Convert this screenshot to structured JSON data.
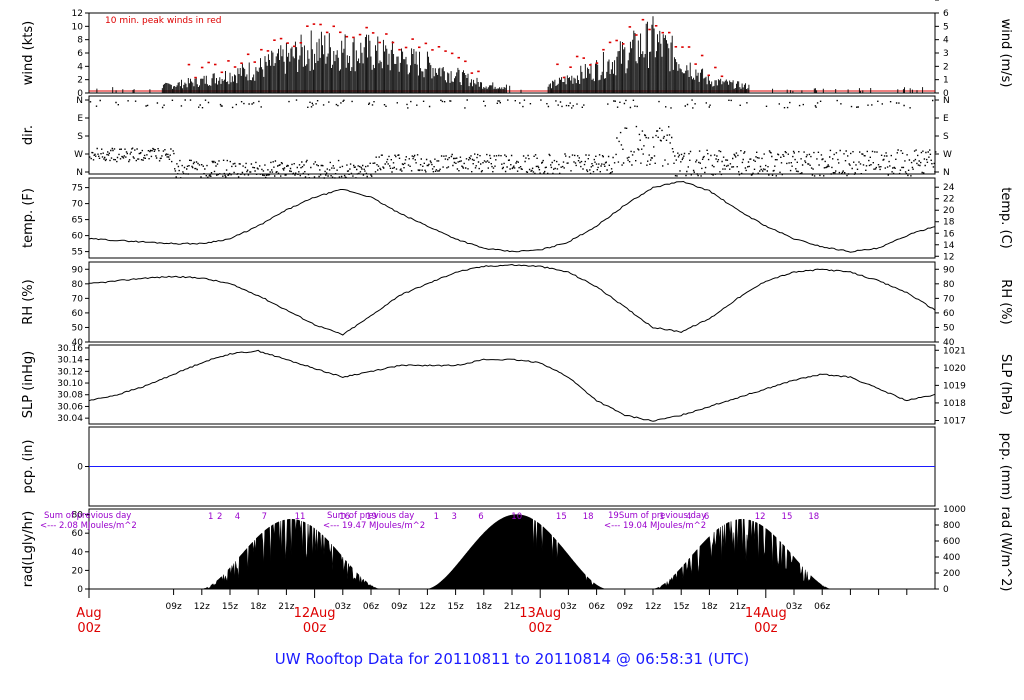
{
  "title": "UW Rooftop Data for 20110811  to  20110814 @ 06:58:31  (UTC)",
  "colors": {
    "accent": "#dd0000",
    "rule": "#1a1aff",
    "rad_note": "#9900cc",
    "line": "#000000"
  },
  "chart_data": [
    {
      "type": "bar",
      "name": "wind",
      "ylabel": "wind (kts)",
      "ylabel_right": "wind (m/s)",
      "ylim": [
        0,
        12
      ],
      "yticks": [
        "0",
        "2",
        "4",
        "6",
        "8",
        "10",
        "12"
      ],
      "ylim_right": [
        0,
        6
      ],
      "yticks_right": [
        "0",
        "1",
        "2",
        "3",
        "4",
        "5",
        "6"
      ],
      "annotation": "10 min. peak winds in red",
      "x_hours": [
        0,
        6,
        12,
        18,
        24,
        30,
        36,
        42,
        48,
        54,
        60,
        66,
        72,
        78,
        84
      ],
      "mean_kts": [
        0.5,
        0.5,
        1.5,
        3.0,
        5.5,
        5.0,
        3.5,
        1.0,
        0.5,
        3.0,
        6.5,
        1.5,
        0.5,
        0.5,
        0.5
      ]
    },
    {
      "type": "scatter",
      "name": "dir",
      "ylabel": "dir.",
      "ylabel_right": "",
      "yticks": [
        "N",
        "E",
        "S",
        "W",
        "N"
      ],
      "yticks_right": [
        "N",
        "E",
        "S",
        "W",
        "N"
      ]
    },
    {
      "type": "line",
      "name": "temp",
      "ylabel": "temp. (F)",
      "ylabel_right": "temp. (C)",
      "ylim": [
        53,
        78
      ],
      "yticks": [
        "55",
        "60",
        "65",
        "70",
        "75"
      ],
      "ylim_right": [
        11.7,
        25.6
      ],
      "yticks_right": [
        "12",
        "14",
        "16",
        "18",
        "20",
        "22",
        "24"
      ],
      "x_hours": [
        0,
        3,
        6,
        9,
        12,
        15,
        18,
        21,
        24,
        27,
        30,
        33,
        36,
        39,
        42,
        45,
        48,
        51,
        54,
        57,
        60,
        63,
        66,
        69,
        72,
        75,
        78,
        81,
        84,
        87,
        90
      ],
      "values": [
        59,
        58.5,
        58,
        57.5,
        57.5,
        59,
        63,
        68,
        72,
        74.5,
        72,
        67,
        63,
        59,
        56,
        55,
        55.5,
        58,
        63,
        69.5,
        75,
        77,
        74,
        68,
        63,
        59,
        56.5,
        55,
        56,
        60,
        63
      ]
    },
    {
      "type": "line",
      "name": "rh",
      "ylabel": "RH (%)",
      "ylabel_right": "RH (%)",
      "ylim": [
        40,
        95
      ],
      "yticks": [
        "40",
        "50",
        "60",
        "70",
        "80",
        "90"
      ],
      "ylim_right": [
        40,
        95
      ],
      "yticks_right": [
        "40",
        "50",
        "60",
        "70",
        "80",
        "90"
      ],
      "x_hours": [
        0,
        3,
        6,
        9,
        12,
        15,
        18,
        21,
        24,
        27,
        30,
        33,
        36,
        39,
        42,
        45,
        48,
        51,
        54,
        57,
        60,
        63,
        66,
        69,
        72,
        75,
        78,
        81,
        84,
        87,
        90
      ],
      "values": [
        80,
        82,
        84,
        85,
        84,
        80,
        72,
        62,
        52,
        45,
        58,
        72,
        80,
        88,
        92,
        93,
        92,
        88,
        78,
        64,
        50,
        47,
        56,
        70,
        82,
        88,
        90,
        88,
        82,
        74,
        62
      ]
    },
    {
      "type": "line",
      "name": "slp",
      "ylabel": "SLP (inHg)",
      "ylabel_right": "SLP (hPa)",
      "ylim": [
        30.03,
        30.165
      ],
      "yticks": [
        "30.04",
        "30.06",
        "30.08",
        "30.10",
        "30.12",
        "30.14",
        "30.16"
      ],
      "ylim_right": [
        1016.8,
        1021.3
      ],
      "yticks_right": [
        "1017",
        "1018",
        "1019",
        "1020",
        "1021"
      ],
      "x_hours": [
        0,
        3,
        6,
        9,
        12,
        15,
        18,
        21,
        24,
        27,
        30,
        33,
        36,
        39,
        42,
        45,
        48,
        51,
        54,
        57,
        60,
        63,
        66,
        69,
        72,
        75,
        78,
        81,
        84,
        87,
        90
      ],
      "values": [
        30.07,
        30.08,
        30.095,
        30.115,
        30.135,
        30.15,
        30.155,
        30.14,
        30.125,
        30.11,
        30.12,
        30.13,
        30.13,
        30.13,
        30.14,
        30.14,
        30.135,
        30.11,
        30.07,
        30.045,
        30.035,
        30.045,
        30.06,
        30.075,
        30.09,
        30.105,
        30.115,
        30.11,
        30.09,
        30.07,
        30.08
      ]
    },
    {
      "type": "line",
      "name": "pcp",
      "ylabel": "pcp. (in)",
      "ylabel_right": "pcp. (mm)",
      "ylim": [
        -1,
        1
      ],
      "yticks": [
        "0"
      ],
      "yticks_right": [
        "0"
      ],
      "x_hours": [
        0,
        90
      ],
      "values": [
        0,
        0
      ]
    },
    {
      "type": "area",
      "name": "rad",
      "ylabel": "rad(Lgly/hr)",
      "ylabel_right": "rad (W/m^2)",
      "ylim": [
        0,
        86
      ],
      "yticks": [
        "0",
        "20",
        "40",
        "60",
        "80"
      ],
      "ylim_right": [
        0,
        1000
      ],
      "yticks_right": [
        "0",
        "200",
        "400",
        "600",
        "800",
        "1000"
      ],
      "daily_notes": [
        {
          "line1": "Sum of previous day",
          "line2": "<--- 2.08 MJoules/m^2"
        },
        {
          "line1": "Sum of previous day",
          "line2": "<--- 19.47 MJoules/m^2"
        },
        {
          "line1": "19Sum of previous day",
          "line2": "<--- 19.04 MJoules/m^2"
        }
      ],
      "hour_marks": [
        [
          "1",
          "2",
          "4",
          "7",
          "11",
          "16",
          "19"
        ],
        [
          "1",
          "3",
          "6",
          "10",
          "15",
          "18"
        ],
        [
          "1",
          "4",
          "6",
          "12",
          "15",
          "18"
        ]
      ]
    }
  ],
  "x_axis": {
    "hour_labels": [
      "09z",
      "12z",
      "15z",
      "18z",
      "21z",
      "03z",
      "06z",
      "09z",
      "12z",
      "15z",
      "18z",
      "21z",
      "03z",
      "06z",
      "09z",
      "12z",
      "15z",
      "18z",
      "21z",
      "03z",
      "06z"
    ],
    "day_labels": [
      {
        "day": "Aug",
        "z": "00z"
      },
      {
        "day": "12Aug",
        "z": "00z"
      },
      {
        "day": "13Aug",
        "z": "00z"
      },
      {
        "day": "14Aug",
        "z": "00z"
      }
    ]
  }
}
